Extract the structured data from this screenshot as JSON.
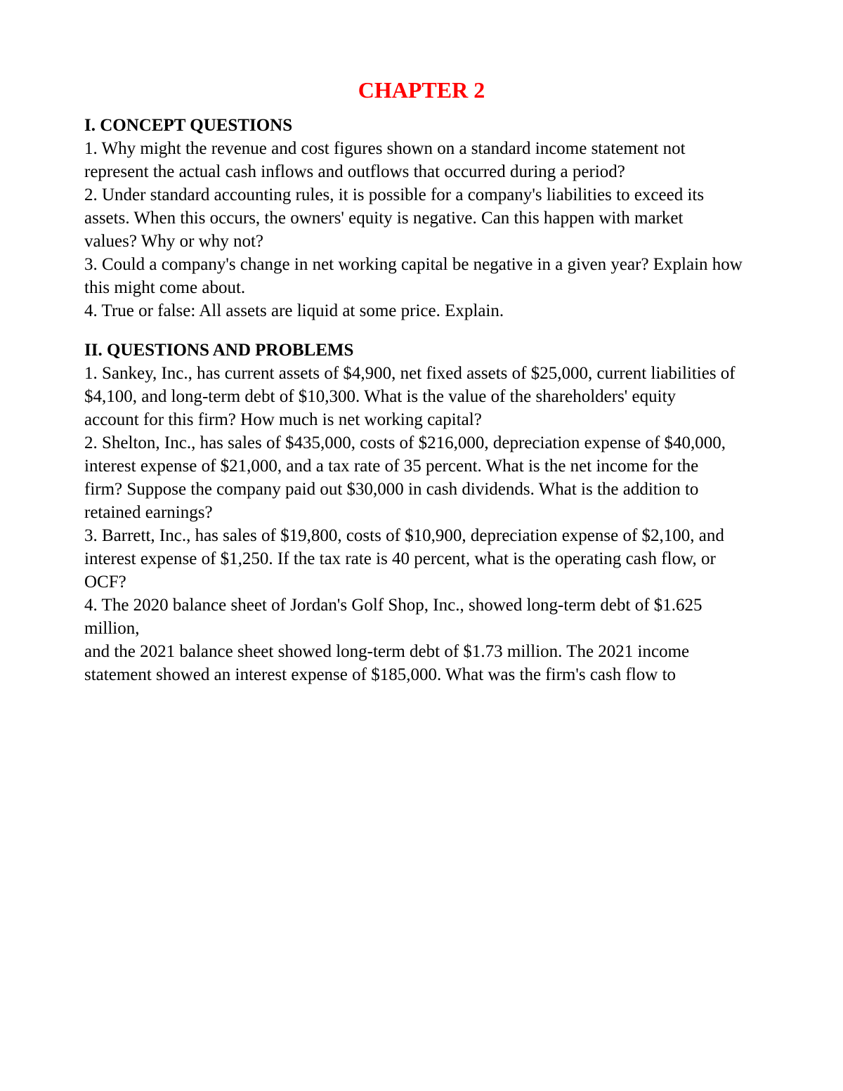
{
  "colors": {
    "title_color": "#ff0000",
    "text_color": "#000000",
    "background_color": "#ffffff"
  },
  "typography": {
    "font_family": "Times New Roman",
    "title_fontsize": 32,
    "heading_fontsize": 25,
    "body_fontsize": 25,
    "title_weight": "bold",
    "heading_weight": "bold"
  },
  "title": "CHAPTER 2",
  "section1": {
    "heading": "I. CONCEPT QUESTIONS",
    "lines": [
      "1. Why might the revenue and cost figures shown on a standard income statement not",
      "represent the actual cash inflows and outflows that occurred during a period?",
      "2. Under standard accounting rules, it is possible for a company's liabilities to exceed its",
      "assets. When this occurs, the owners' equity is negative. Can this happen with market",
      "values? Why or why not?",
      "3. Could a company's change in net working capital be negative in a given year? Explain how",
      "this might come about.",
      "4. True or false: All assets are liquid at some price. Explain."
    ]
  },
  "section2": {
    "heading": "II. QUESTIONS AND PROBLEMS",
    "lines": [
      "1. Sankey, Inc., has current assets of $4,900, net fixed assets of $25,000, current liabilities of",
      "$4,100, and long-term debt of $10,300. What is the value of the shareholders' equity",
      "account for this firm? How much is net working capital?",
      "2. Shelton, Inc., has sales of $435,000, costs of $216,000, depreciation expense of $40,000,",
      "interest expense of $21,000, and a tax rate of 35 percent. What is the net income for the",
      "firm? Suppose the company paid out $30,000 in cash dividends. What is the addition to",
      "retained earnings?",
      "3. Barrett, Inc., has sales of $19,800, costs of $10,900, depreciation expense of $2,100, and",
      "interest expense of $1,250. If the tax rate is 40 percent, what is the operating cash flow, or",
      "OCF?",
      "4. The 2020 balance sheet of Jordan's Golf Shop, Inc., showed long-term debt of $1.625 million,",
      "and the 2021 balance sheet showed long-term debt of $1.73 million. The 2021 income",
      "statement showed an interest expense of $185,000. What was the firm's cash flow to"
    ]
  }
}
